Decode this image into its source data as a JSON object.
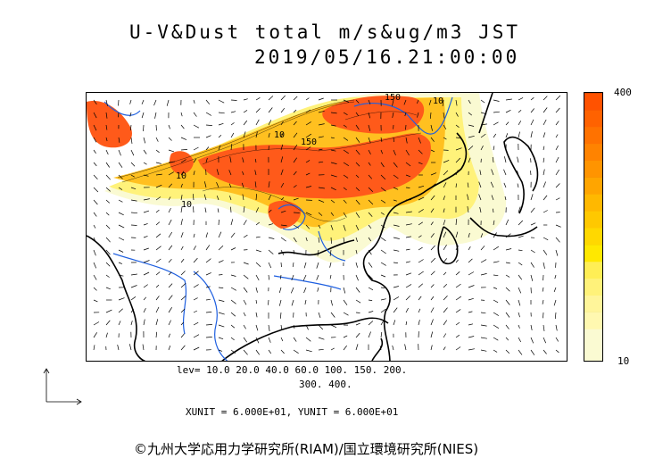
{
  "title": {
    "line1": "U-V&Dust total m/s&ug/m3 JST",
    "line2": "2019/05/16.21:00:00"
  },
  "colorbar": {
    "max_label": "400",
    "min_label": "10",
    "colors": [
      "#fafad2",
      "#fafad2",
      "#fff8b0",
      "#fff59a",
      "#fff27a",
      "#ffee55",
      "#ffe800",
      "#ffd800",
      "#ffc800",
      "#ffb800",
      "#ffa500",
      "#ff9400",
      "#ff8300",
      "#ff7200",
      "#ff6200",
      "#ff5200"
    ]
  },
  "map": {
    "contour_labels": [
      "150",
      "10",
      "150",
      "10",
      "10",
      "10"
    ],
    "colors": {
      "dust_high": "#ff5a1a",
      "dust_mid": "#ffc020",
      "dust_low": "#fff27a",
      "dust_faint": "#fafad2",
      "river": "#1e5fe0",
      "coast": "#000000"
    }
  },
  "legend": {
    "lev_line1": "lev= 10.0 20.0 40.0 60.0 100. 150. 200.",
    "lev_line2": "300. 400.",
    "units": "XUNIT = 6.000E+01, YUNIT = 6.000E+01"
  },
  "credit": "©九州大学応用力学研究所(RIAM)/国立環境研究所(NIES)"
}
